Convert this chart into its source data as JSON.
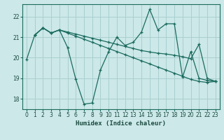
{
  "background_color": "#cce8e8",
  "grid_color": "#aacfcf",
  "line_color": "#1a6b5e",
  "xlabel": "Humidex (Indice chaleur)",
  "xlim": [
    -0.5,
    23.5
  ],
  "ylim": [
    17.5,
    22.6
  ],
  "yticks": [
    18,
    19,
    20,
    21,
    22
  ],
  "xticks": [
    0,
    1,
    2,
    3,
    4,
    5,
    6,
    7,
    8,
    9,
    10,
    11,
    12,
    13,
    14,
    15,
    16,
    17,
    18,
    19,
    20,
    21,
    22,
    23
  ],
  "line1_x": [
    0,
    1,
    2,
    3,
    4,
    5,
    6,
    7,
    8,
    9,
    10,
    11,
    12,
    13,
    14,
    15,
    16,
    17,
    18,
    19,
    20,
    21,
    22,
    23
  ],
  "line1_y": [
    19.9,
    21.1,
    21.45,
    21.2,
    21.35,
    20.5,
    18.95,
    17.75,
    17.8,
    19.4,
    20.3,
    21.0,
    20.6,
    20.75,
    21.25,
    22.35,
    21.35,
    21.65,
    21.65,
    19.05,
    20.3,
    19.0,
    18.9,
    18.85
  ],
  "line2_x": [
    1,
    2,
    3,
    4,
    5,
    6,
    7,
    8,
    9,
    10,
    11,
    12,
    13,
    14,
    15,
    16,
    17,
    18,
    19,
    20,
    21,
    22,
    23
  ],
  "line2_y": [
    21.1,
    21.45,
    21.2,
    21.35,
    21.25,
    21.15,
    21.05,
    20.95,
    20.85,
    20.75,
    20.65,
    20.55,
    20.45,
    20.35,
    20.28,
    20.22,
    20.18,
    20.12,
    20.05,
    19.95,
    20.65,
    19.0,
    18.85
  ],
  "line3_x": [
    1,
    2,
    3,
    4,
    5,
    6,
    7,
    8,
    9,
    10,
    11,
    12,
    13,
    14,
    15,
    16,
    17,
    18,
    19,
    20,
    21,
    22,
    23
  ],
  "line3_y": [
    21.1,
    21.45,
    21.2,
    21.35,
    21.2,
    21.05,
    20.9,
    20.75,
    20.6,
    20.45,
    20.3,
    20.15,
    20.0,
    19.85,
    19.7,
    19.55,
    19.4,
    19.25,
    19.1,
    18.95,
    18.85,
    18.8,
    18.85
  ]
}
